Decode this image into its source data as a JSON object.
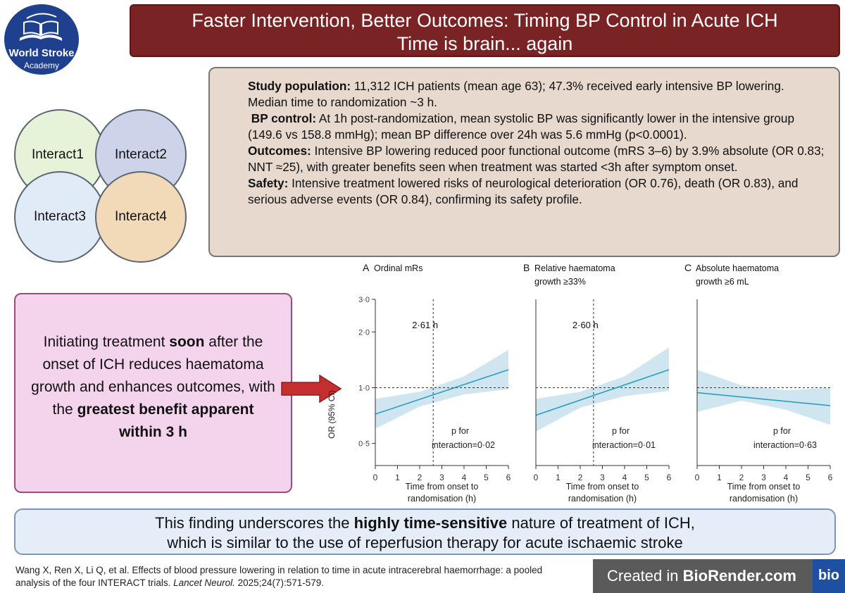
{
  "logo": {
    "name": "World Stroke",
    "sub": "Academy"
  },
  "title": {
    "line1": "Faster Intervention, Better Outcomes: Timing BP Control in Acute ICH",
    "line2": "Time is brain... again"
  },
  "trials": [
    "Interact1",
    "Interact2",
    "Interact3",
    "Interact4"
  ],
  "summary": {
    "s1_label": "Study population:",
    "s1_text": " 11,312 ICH patients (mean age 63); 47.3% received early intensive BP lowering. Median time to randomization ~3 h.",
    "s2_label": "BP control:",
    "s2_text": " At 1h post-randomization, mean systolic BP was significantly lower in the intensive group (149.6 vs 158.8 mmHg); mean BP difference over 24h was 5.6 mmHg (p<0.0001).",
    "s3_label": "Outcomes:",
    "s3_text": " Intensive BP lowering reduced poor functional outcome (mRS 3–6) by 3.9% absolute (OR 0.83; NNT ≈25), with greater benefits seen when treatment was started <3h after symptom onset.",
    "s4_label": "Safety:",
    "s4_text": " Intensive treatment lowered risks of neurological deterioration (OR 0.76), death (OR 0.83), and serious adverse events (OR 0.84), confirming its safety profile."
  },
  "key_message": {
    "t1": "Initiating treatment ",
    "b1": "soon",
    "t2": " after the onset of ICH reduces haematoma growth and enhances outcomes, with the ",
    "b2": "greatest benefit apparent within 3 h"
  },
  "conclusion": {
    "t1": "This finding underscores the ",
    "b1": "highly time-sensitive",
    "t2": " nature of treatment of ICH,",
    "line2": "which is similar to the use of reperfusion therapy for acute ischaemic stroke"
  },
  "citation": {
    "t1": "Wang X, Ren X, Li Q, et al. Effects of blood pressure lowering in relation to time in acute intracerebral haemorrhage: a pooled analysis of the four INTERACT trials. ",
    "journal": "Lancet Neurol.",
    "t2": " 2025;24(7):571-579."
  },
  "biorender": {
    "prefix": "Created in ",
    "brand": "BioRender.com",
    "badge": "bio"
  },
  "colors": {
    "title_bg": "#7a2325",
    "summary_bg": "#e7d9ce",
    "pink_bg": "#f3d4ec",
    "conclusion_bg": "#e5eef8",
    "line": "#2b9fbf",
    "band": "#cfe6f1",
    "circle1": "#e6f3d8",
    "circle2": "#cdd3e8",
    "circle3": "#e1ebf7",
    "circle4": "#f2d9b8",
    "arrow": "#c62f2f"
  },
  "chart_data": [
    {
      "type": "line",
      "panel": "A",
      "title": "Ordinal mRs",
      "ylabel": "OR (95% CI)",
      "xlabel": "Time from onset to randomisation (h)",
      "y_scale": "log",
      "ylim": [
        0.38,
        3.0
      ],
      "yticks": [
        3.0,
        2.0,
        1.0,
        0.5
      ],
      "ytick_labels": [
        "3·0",
        "2·0",
        "1·0",
        "0·5"
      ],
      "xlim": [
        0,
        6
      ],
      "xticks": [
        0,
        1,
        2,
        3,
        4,
        5,
        6
      ],
      "reference_y": 1.0,
      "vline_x": 2.61,
      "vline_label": "2·61 h",
      "line": {
        "x": [
          0,
          6
        ],
        "y": [
          0.72,
          1.25
        ]
      },
      "band": {
        "x": [
          0,
          2,
          4,
          6
        ],
        "upper": [
          0.87,
          0.95,
          1.15,
          1.6
        ],
        "lower": [
          0.6,
          0.79,
          0.92,
          0.98
        ]
      },
      "p_label": "p for",
      "p_text": "interaction=0·02"
    },
    {
      "type": "line",
      "panel": "B",
      "title": "Relative haematoma growth ≥33%",
      "xlabel": "Time from onset to randomisation (h)",
      "y_scale": "log",
      "ylim": [
        0.38,
        3.0
      ],
      "xlim": [
        0,
        6
      ],
      "xticks": [
        0,
        1,
        2,
        3,
        4,
        5,
        6
      ],
      "reference_y": 1.0,
      "vline_x": 2.6,
      "vline_label": "2·60 h",
      "line": {
        "x": [
          0,
          6
        ],
        "y": [
          0.71,
          1.25
        ]
      },
      "band": {
        "x": [
          0,
          2,
          4,
          6
        ],
        "upper": [
          0.87,
          0.95,
          1.15,
          1.65
        ],
        "lower": [
          0.58,
          0.78,
          0.9,
          0.96
        ]
      },
      "p_label": "p for",
      "p_text": "interaction=0·01"
    },
    {
      "type": "line",
      "panel": "C",
      "title": "Absolute haematoma growth ≥6 mL",
      "xlabel": "Time from onset to randomisation (h)",
      "y_scale": "log",
      "ylim": [
        0.38,
        3.0
      ],
      "xlim": [
        0,
        6
      ],
      "xticks": [
        0,
        1,
        2,
        3,
        4,
        5,
        6
      ],
      "reference_y": 1.0,
      "line": {
        "x": [
          0,
          6
        ],
        "y": [
          0.94,
          0.8
        ]
      },
      "band": {
        "x": [
          0,
          2,
          4,
          6
        ],
        "upper": [
          1.25,
          1.03,
          0.97,
          1.0
        ],
        "lower": [
          0.74,
          0.85,
          0.76,
          0.63
        ]
      },
      "p_label": "p for",
      "p_text": "interaction=0·63"
    }
  ]
}
